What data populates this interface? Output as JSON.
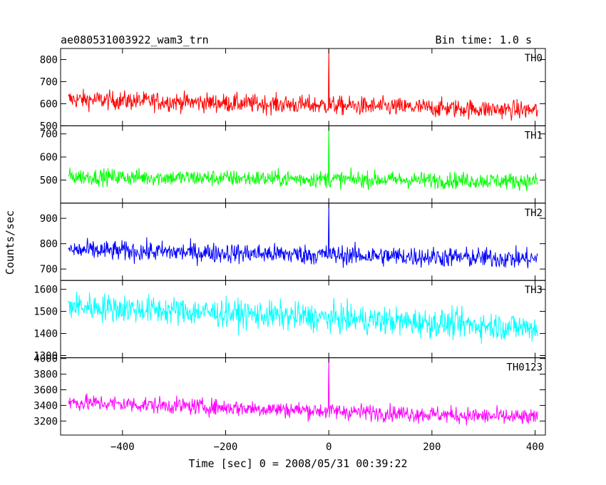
{
  "chart_data": {
    "type": "line",
    "title": "ae080531003922_wam3_trn",
    "bin_time_label": "Bin time: 1.0 s",
    "xlabel": "Time [sec] 0 = 2008/05/31 00:39:22",
    "ylabel": "Counts/sec",
    "xlim": [
      -520,
      420
    ],
    "x_ticks": [
      -400,
      -200,
      0,
      200,
      400
    ],
    "x_range_data": [
      -505,
      405
    ],
    "panels": [
      {
        "name": "TH0",
        "color": "#ff0000",
        "ylim": [
          500,
          850
        ],
        "y_ticks": [
          500,
          600,
          700,
          800
        ],
        "baseline_start": 620,
        "baseline_end": 570,
        "noise": 30,
        "spike_time": 0,
        "spike_peak": 850
      },
      {
        "name": "TH1",
        "color": "#00ff00",
        "ylim": [
          400,
          735
        ],
        "y_ticks": [
          500,
          600,
          700
        ],
        "baseline_start": 515,
        "baseline_end": 495,
        "noise": 25,
        "spike_time": 0,
        "spike_peak": 735
      },
      {
        "name": "TH2",
        "color": "#0000ff",
        "ylim": [
          655,
          960
        ],
        "y_ticks": [
          700,
          800,
          900
        ],
        "baseline_start": 775,
        "baseline_end": 740,
        "noise": 28,
        "spike_time": 0,
        "spike_peak": 960
      },
      {
        "name": "TH3",
        "color": "#00ffff",
        "ylim": [
          1290,
          1640
        ],
        "y_ticks": [
          1300,
          1400,
          1500,
          1600
        ],
        "baseline_start": 1525,
        "baseline_end": 1425,
        "noise": 45,
        "spike_time": null,
        "spike_peak": null
      },
      {
        "name": "TH0123",
        "color": "#ff00ff",
        "ylim": [
          3020,
          4010
        ],
        "y_ticks": [
          3200,
          3400,
          3600,
          3800,
          4000
        ],
        "baseline_start": 3440,
        "baseline_end": 3240,
        "noise": 75,
        "spike_time": 0,
        "spike_peak": 4010
      }
    ]
  }
}
